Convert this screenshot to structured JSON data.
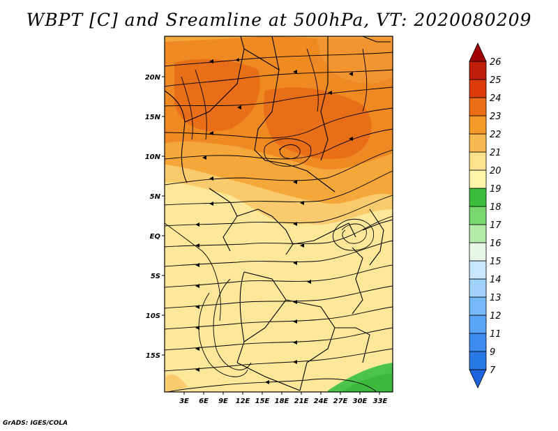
{
  "title": "WBPT [C] and Sreamline at 500hPa, VT: 2020080209",
  "credit": "GrADS: IGES/COLA",
  "map": {
    "lon_labels": [
      "3E",
      "6E",
      "9E",
      "12E",
      "15E",
      "18E",
      "21E",
      "24E",
      "27E",
      "30E",
      "33E"
    ],
    "lat_labels": [
      "20N",
      "15N",
      "10N",
      "5N",
      "EQ",
      "5S",
      "10S",
      "15S"
    ]
  },
  "colorbar": {
    "labels": [
      "7",
      "9",
      "11",
      "12",
      "13",
      "14",
      "15",
      "16",
      "17",
      "18",
      "19",
      "20",
      "21",
      "22",
      "23",
      "24",
      "25",
      "26"
    ],
    "colors": [
      "#1e64dc",
      "#2878e6",
      "#3c8cf0",
      "#5aa5f5",
      "#78b9f9",
      "#a0d2fb",
      "#c8e6fd",
      "#e6f7e6",
      "#b4eaa8",
      "#78d86e",
      "#3cbe3c",
      "#fff5aa",
      "#fde18c",
      "#f7b950",
      "#f59a28",
      "#ec6e14",
      "#dc3c0a",
      "#c01e0a",
      "#a00000"
    ]
  }
}
